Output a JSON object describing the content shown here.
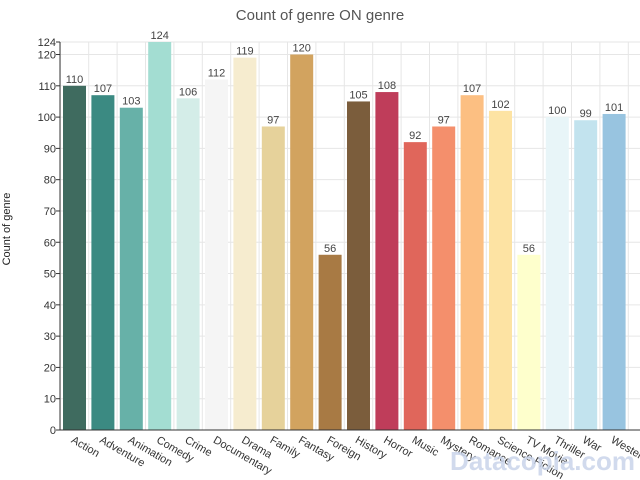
{
  "watermark": "Datacopia.com",
  "chart_data": {
    "type": "bar",
    "title": "Count of genre ON genre",
    "xlabel": "",
    "ylabel": "Count of genre",
    "ylim": [
      0,
      124
    ],
    "yticks": [
      0,
      10,
      20,
      30,
      40,
      50,
      60,
      70,
      80,
      90,
      100,
      110,
      120,
      124
    ],
    "grid": true,
    "categories": [
      "Action",
      "Adventure",
      "Animation",
      "Comedy",
      "Crime",
      "Documentary",
      "Drama",
      "Family",
      "Fantasy",
      "Foreign",
      "History",
      "Horror",
      "Music",
      "Mystery",
      "Romance",
      "Science Fiction",
      "TV Movie",
      "Thriller",
      "War",
      "Western"
    ],
    "values": [
      110,
      107,
      103,
      124,
      106,
      112,
      119,
      97,
      120,
      56,
      105,
      108,
      92,
      97,
      107,
      102,
      56,
      100,
      99,
      101
    ],
    "colors": [
      "#3f6b5f",
      "#3b8a82",
      "#67b1a8",
      "#a3ddd2",
      "#d4ede8",
      "#f5f5f5",
      "#f6eccf",
      "#e6d29b",
      "#d2a35f",
      "#a87a44",
      "#7b5d3c",
      "#bf3d5a",
      "#e0665b",
      "#f48f6c",
      "#fcbf82",
      "#fde3a3",
      "#feffcc",
      "#e8f5f8",
      "#c2e3ee",
      "#98c4e0"
    ]
  }
}
